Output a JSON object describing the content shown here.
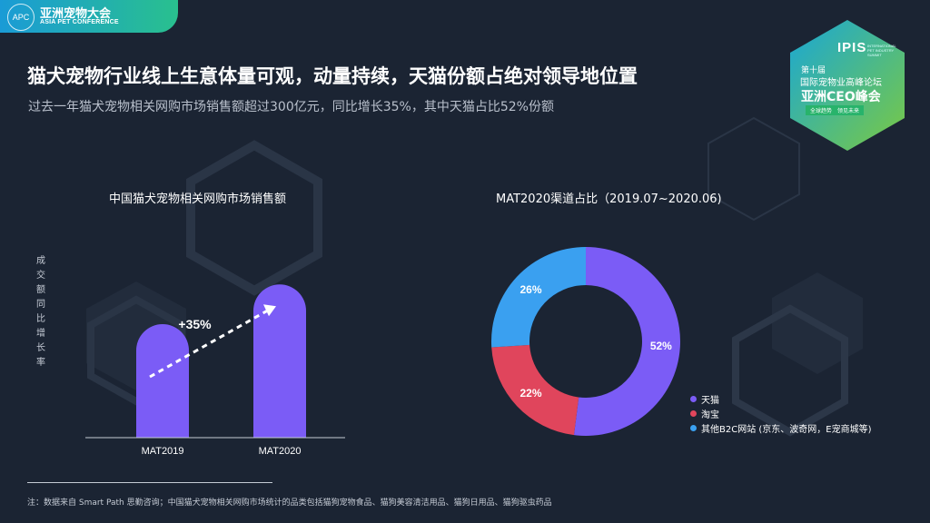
{
  "header": {
    "logo_mark": "APC",
    "logo_cn": "亚洲宠物大会",
    "logo_en": "ASIA PET CONFERENCE"
  },
  "title": "猫犬宠物行业线上生意体量可观，动量持续，天猫份额占绝对领导地位置",
  "subtitle": "过去一年猫犬宠物相关网购市场销售额超过300亿元，同比增长35%，其中天猫占比52%份额",
  "badge": {
    "line1": "IPIS",
    "line1_small": "INTERNATIONAL PET INDUSTRY SUMMIT",
    "line2": "第十届",
    "line3": "国际宠物业高峰论坛",
    "line4": "亚洲CEO峰会",
    "line5": "全球趋势　领见未来"
  },
  "chart_data": [
    {
      "type": "bar",
      "title": "中国猫犬宠物相关网购市场销售额",
      "ylabel": "成交额同比增长率",
      "categories": [
        "MAT2019",
        "MAT2020"
      ],
      "values": [
        100,
        135
      ],
      "annotation": "+35%",
      "ylim": [
        0,
        160
      ]
    },
    {
      "type": "pie",
      "title": "MAT2020渠道占比（2019.07~2020.06)",
      "slices": [
        {
          "label": "天猫",
          "value": 52,
          "display": "52%",
          "color": "#7b5cf6"
        },
        {
          "label": "淘宝",
          "value": 22,
          "display": "22%",
          "color": "#e0455c"
        },
        {
          "label": "其他B2C网站 (京东、波奇网，E宠商城等)",
          "value": 26,
          "display": "26%",
          "color": "#3aa0f0"
        }
      ]
    }
  ],
  "footnote": "注：数据来自 Smart Path 思勤咨询；中国猫犬宠物相关网购市场统计的品类包括猫狗宠物食品、猫狗美容清洁用品、猫狗日用品、猫狗驱虫药品",
  "colors": {
    "bar": "#7b5cf6",
    "background": "#1b2433",
    "accent_green": "#29c08e",
    "accent_blue": "#1a9bd6"
  }
}
